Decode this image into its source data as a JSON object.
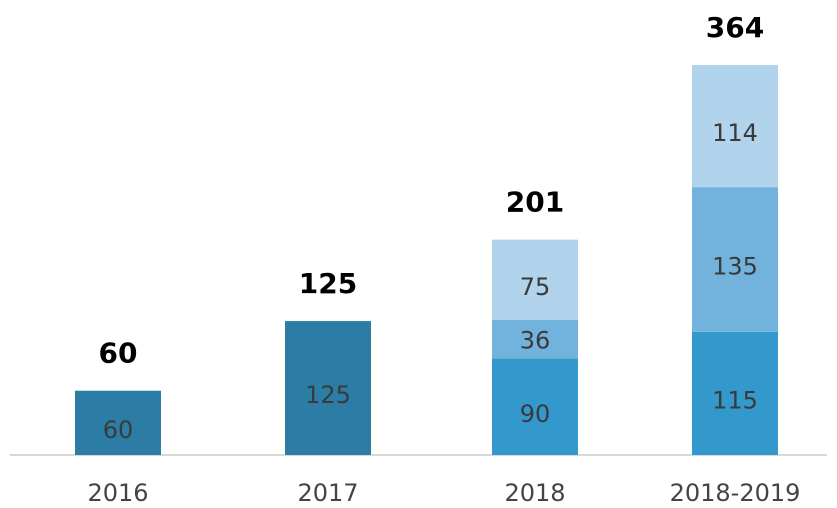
{
  "chart_data": {
    "type": "stacked-bar",
    "categories": [
      "2016",
      "2017",
      "2018",
      "2018-2019"
    ],
    "series": [
      {
        "values": [
          60,
          125,
          90,
          115
        ],
        "colors": [
          "#2b7da6",
          "#2b7da6",
          "#3399cc",
          "#3399cc"
        ]
      },
      {
        "values": [
          null,
          null,
          36,
          135
        ],
        "color": "#72b3de"
      },
      {
        "values": [
          null,
          null,
          75,
          114
        ],
        "color": "#b1d3ec"
      }
    ],
    "totals": [
      60,
      125,
      201,
      364
    ]
  }
}
